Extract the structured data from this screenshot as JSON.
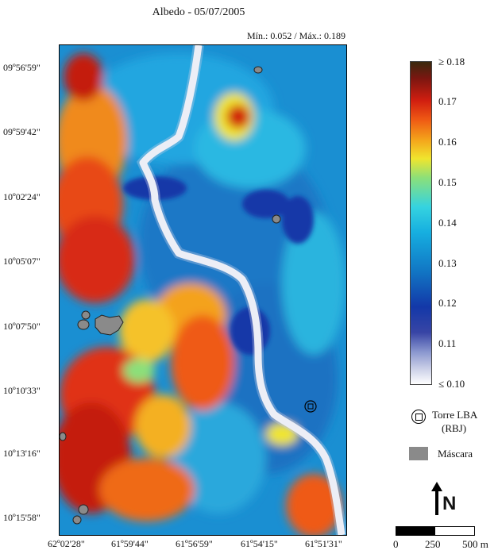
{
  "title": "Albedo - 05/07/2005",
  "minmax": "Mín.: 0.052 / Máx.: 0.189",
  "lat_labels": [
    "09º56'59\"",
    "09º59'42\"",
    "10º02'24\"",
    "10º05'07\"",
    "10º07'50\"",
    "10º10'33\"",
    "10º13'16\"",
    "10º15'58\""
  ],
  "lon_labels": [
    "62º02'28\"",
    "61º59'44\"",
    "61º56'59\"",
    "61º54'15\"",
    "61º51'31\""
  ],
  "colorbar": {
    "ticks": [
      "≥ 0.18",
      "0.17",
      "0.16",
      "0.15",
      "0.14",
      "0.13",
      "0.12",
      "0.11",
      "≤ 0.10"
    ],
    "colors": {
      "high": "#3a2a0e",
      "red": "#d11e10",
      "orange": "#f4a21a",
      "yellow": "#f0e52e",
      "cyan": "#35d3e0",
      "blue": "#1176c4",
      "dark_blue": "#1338a8",
      "white": "#ffffff"
    }
  },
  "legend": {
    "tower_line1": "Torre LBA",
    "tower_line2": "(RBJ)",
    "mask": "Máscara"
  },
  "north": "N",
  "scale": {
    "l0": "0",
    "l1": "250",
    "l2": "500 m"
  }
}
